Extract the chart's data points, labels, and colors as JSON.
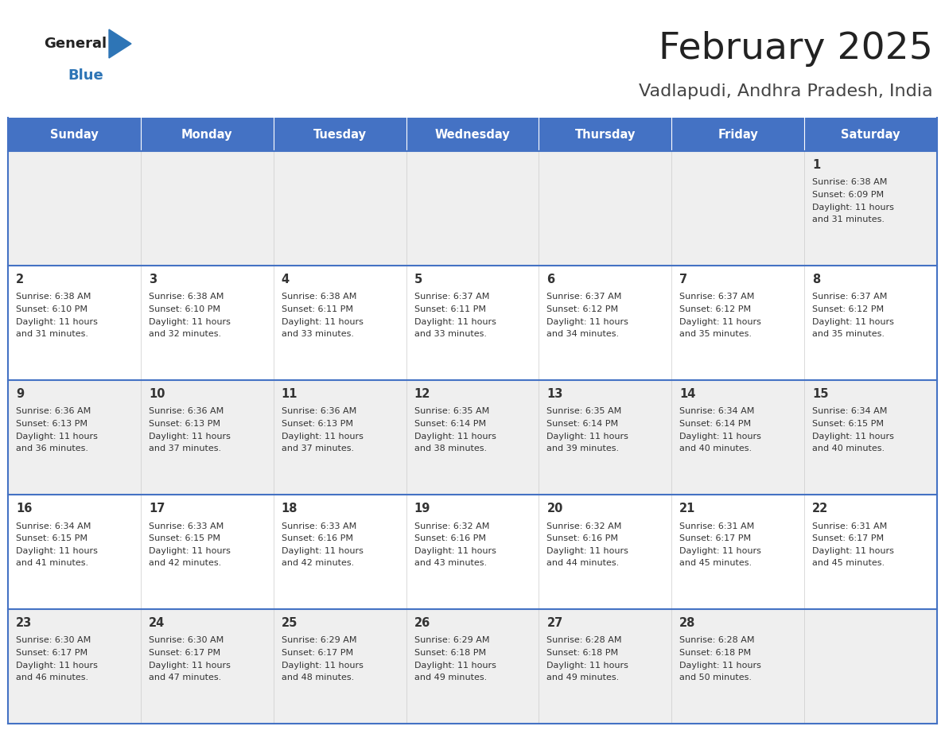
{
  "title": "February 2025",
  "subtitle": "Vadlapudi, Andhra Pradesh, India",
  "header_bg": "#4472C4",
  "header_text": "#FFFFFF",
  "day_names": [
    "Sunday",
    "Monday",
    "Tuesday",
    "Wednesday",
    "Thursday",
    "Friday",
    "Saturday"
  ],
  "cell_bg_odd": "#EFEFEF",
  "cell_bg_even": "#FFFFFF",
  "row_border_color": "#4472C4",
  "col_border_color": "#CCCCCC",
  "title_color": "#222222",
  "subtitle_color": "#444444",
  "general_text_color": "#222222",
  "blue_color": "#2E75B6",
  "cell_text_color": "#333333",
  "days": [
    {
      "day": 1,
      "col": 6,
      "row": 0,
      "sunrise": "6:38 AM",
      "sunset": "6:09 PM",
      "daylight": "11 hours and 31 minutes"
    },
    {
      "day": 2,
      "col": 0,
      "row": 1,
      "sunrise": "6:38 AM",
      "sunset": "6:10 PM",
      "daylight": "11 hours and 31 minutes"
    },
    {
      "day": 3,
      "col": 1,
      "row": 1,
      "sunrise": "6:38 AM",
      "sunset": "6:10 PM",
      "daylight": "11 hours and 32 minutes"
    },
    {
      "day": 4,
      "col": 2,
      "row": 1,
      "sunrise": "6:38 AM",
      "sunset": "6:11 PM",
      "daylight": "11 hours and 33 minutes"
    },
    {
      "day": 5,
      "col": 3,
      "row": 1,
      "sunrise": "6:37 AM",
      "sunset": "6:11 PM",
      "daylight": "11 hours and 33 minutes"
    },
    {
      "day": 6,
      "col": 4,
      "row": 1,
      "sunrise": "6:37 AM",
      "sunset": "6:12 PM",
      "daylight": "11 hours and 34 minutes"
    },
    {
      "day": 7,
      "col": 5,
      "row": 1,
      "sunrise": "6:37 AM",
      "sunset": "6:12 PM",
      "daylight": "11 hours and 35 minutes"
    },
    {
      "day": 8,
      "col": 6,
      "row": 1,
      "sunrise": "6:37 AM",
      "sunset": "6:12 PM",
      "daylight": "11 hours and 35 minutes"
    },
    {
      "day": 9,
      "col": 0,
      "row": 2,
      "sunrise": "6:36 AM",
      "sunset": "6:13 PM",
      "daylight": "11 hours and 36 minutes"
    },
    {
      "day": 10,
      "col": 1,
      "row": 2,
      "sunrise": "6:36 AM",
      "sunset": "6:13 PM",
      "daylight": "11 hours and 37 minutes"
    },
    {
      "day": 11,
      "col": 2,
      "row": 2,
      "sunrise": "6:36 AM",
      "sunset": "6:13 PM",
      "daylight": "11 hours and 37 minutes"
    },
    {
      "day": 12,
      "col": 3,
      "row": 2,
      "sunrise": "6:35 AM",
      "sunset": "6:14 PM",
      "daylight": "11 hours and 38 minutes"
    },
    {
      "day": 13,
      "col": 4,
      "row": 2,
      "sunrise": "6:35 AM",
      "sunset": "6:14 PM",
      "daylight": "11 hours and 39 minutes"
    },
    {
      "day": 14,
      "col": 5,
      "row": 2,
      "sunrise": "6:34 AM",
      "sunset": "6:14 PM",
      "daylight": "11 hours and 40 minutes"
    },
    {
      "day": 15,
      "col": 6,
      "row": 2,
      "sunrise": "6:34 AM",
      "sunset": "6:15 PM",
      "daylight": "11 hours and 40 minutes"
    },
    {
      "day": 16,
      "col": 0,
      "row": 3,
      "sunrise": "6:34 AM",
      "sunset": "6:15 PM",
      "daylight": "11 hours and 41 minutes"
    },
    {
      "day": 17,
      "col": 1,
      "row": 3,
      "sunrise": "6:33 AM",
      "sunset": "6:15 PM",
      "daylight": "11 hours and 42 minutes"
    },
    {
      "day": 18,
      "col": 2,
      "row": 3,
      "sunrise": "6:33 AM",
      "sunset": "6:16 PM",
      "daylight": "11 hours and 42 minutes"
    },
    {
      "day": 19,
      "col": 3,
      "row": 3,
      "sunrise": "6:32 AM",
      "sunset": "6:16 PM",
      "daylight": "11 hours and 43 minutes"
    },
    {
      "day": 20,
      "col": 4,
      "row": 3,
      "sunrise": "6:32 AM",
      "sunset": "6:16 PM",
      "daylight": "11 hours and 44 minutes"
    },
    {
      "day": 21,
      "col": 5,
      "row": 3,
      "sunrise": "6:31 AM",
      "sunset": "6:17 PM",
      "daylight": "11 hours and 45 minutes"
    },
    {
      "day": 22,
      "col": 6,
      "row": 3,
      "sunrise": "6:31 AM",
      "sunset": "6:17 PM",
      "daylight": "11 hours and 45 minutes"
    },
    {
      "day": 23,
      "col": 0,
      "row": 4,
      "sunrise": "6:30 AM",
      "sunset": "6:17 PM",
      "daylight": "11 hours and 46 minutes"
    },
    {
      "day": 24,
      "col": 1,
      "row": 4,
      "sunrise": "6:30 AM",
      "sunset": "6:17 PM",
      "daylight": "11 hours and 47 minutes"
    },
    {
      "day": 25,
      "col": 2,
      "row": 4,
      "sunrise": "6:29 AM",
      "sunset": "6:17 PM",
      "daylight": "11 hours and 48 minutes"
    },
    {
      "day": 26,
      "col": 3,
      "row": 4,
      "sunrise": "6:29 AM",
      "sunset": "6:18 PM",
      "daylight": "11 hours and 49 minutes"
    },
    {
      "day": 27,
      "col": 4,
      "row": 4,
      "sunrise": "6:28 AM",
      "sunset": "6:18 PM",
      "daylight": "11 hours and 49 minutes"
    },
    {
      "day": 28,
      "col": 5,
      "row": 4,
      "sunrise": "6:28 AM",
      "sunset": "6:18 PM",
      "daylight": "11 hours and 50 minutes"
    }
  ]
}
